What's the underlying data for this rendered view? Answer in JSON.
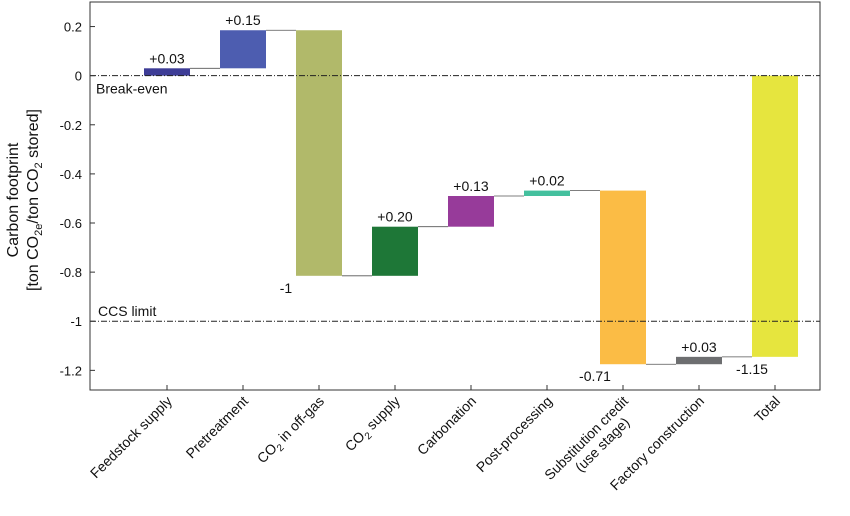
{
  "chart_data": {
    "type": "bar",
    "subtype": "waterfall",
    "ylabel_line1": "Carbon footprint",
    "ylabel_line2": "[ton CO",
    "ylabel_line2_sub": "2e",
    "ylabel_line2_mid": "/ton CO",
    "ylabel_line2_sub2": "2",
    "ylabel_line2_end": " stored]",
    "ylim": [
      -1.28,
      0.3
    ],
    "yticks": [
      0.2,
      0,
      -0.2,
      -0.4,
      -0.6,
      -0.8,
      -1,
      -1.2
    ],
    "ytick_labels": [
      "0.2",
      "0",
      "-0.2",
      "-0.4",
      "-0.6",
      "-0.8",
      "-1",
      "-1.2"
    ],
    "grid": false,
    "reference_lines": [
      {
        "label": "Break-even",
        "value": 0
      },
      {
        "label": "CCS limit",
        "value": -1
      }
    ],
    "bars": [
      {
        "category": "Feedstock supply",
        "cat_main": "Feedstock supply",
        "start": 0,
        "end": 0.03,
        "value": 0.03,
        "label": "+0.03",
        "color": "#3d3c96"
      },
      {
        "category": "Pretreatment",
        "cat_main": "Pretreatment",
        "start": 0.03,
        "end": 0.185,
        "value": 0.15,
        "label": "+0.15",
        "color": "#4d5db0"
      },
      {
        "category": "CO2 in off-gas",
        "cat_main": "CO",
        "cat_sub": "2",
        "cat_rest": " in off-gas",
        "start": 0.185,
        "end": -0.815,
        "value": -1,
        "label": "-1",
        "color": "#b1b96a"
      },
      {
        "category": "CO2 supply",
        "cat_main": "CO",
        "cat_sub": "2",
        "cat_rest": " supply",
        "start": -0.815,
        "end": -0.615,
        "value": 0.2,
        "label": "+0.20",
        "color": "#1e7737"
      },
      {
        "category": "Carbonation",
        "cat_main": "Carbonation",
        "start": -0.615,
        "end": -0.49,
        "value": 0.13,
        "label": "+0.13",
        "color": "#973b9a"
      },
      {
        "category": "Post-processing",
        "cat_main": "Post-processing",
        "start": -0.49,
        "end": -0.468,
        "value": 0.02,
        "label": "+0.02",
        "color": "#44c09e"
      },
      {
        "category": "Substitution credit (use stage)",
        "cat_main": "Substitution credit",
        "cat_line2": "(use stage)",
        "start": -0.468,
        "end": -1.175,
        "value": -0.71,
        "label": "-0.71",
        "color": "#fbbc45"
      },
      {
        "category": "Factory construction",
        "cat_main": "Factory construction",
        "start": -1.175,
        "end": -1.145,
        "value": 0.03,
        "label": "+0.03",
        "color": "#6d6e70"
      },
      {
        "category": "Total",
        "cat_main": "Total",
        "start": 0,
        "end": -1.145,
        "value": -1.15,
        "label": "-1.15",
        "color": "#e6e53e"
      }
    ]
  }
}
